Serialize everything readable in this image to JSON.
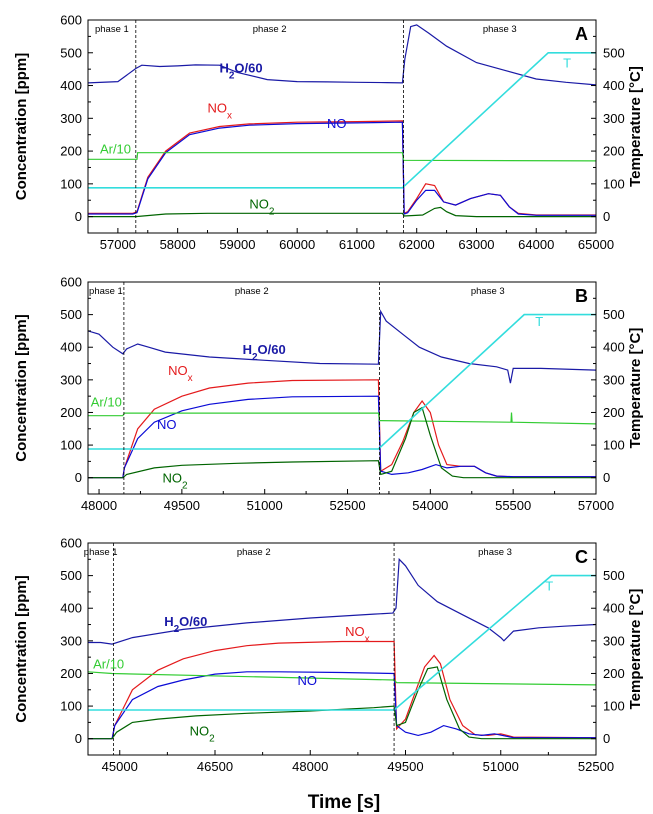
{
  "figure": {
    "xlabel": "Time [s]"
  },
  "chart_data": [
    {
      "type": "line",
      "panel": "A",
      "ylabel": "Concentration [ppm]",
      "ylabel_right": "Temperature [°C]",
      "xlim": [
        56500,
        65000
      ],
      "ylim": [
        -50,
        600
      ],
      "ylim_right": [
        -50,
        600
      ],
      "xticks": [
        57000,
        58000,
        59000,
        60000,
        61000,
        62000,
        63000,
        64000,
        65000
      ],
      "yticks": [
        0,
        100,
        200,
        300,
        400,
        500,
        600
      ],
      "yticks_right": [
        0,
        100,
        200,
        300,
        400,
        500
      ],
      "phases": [
        {
          "label": "phase 1",
          "x_start": 56500,
          "x_end": 57300
        },
        {
          "label": "phase 2",
          "x_start": 57300,
          "x_end": 61780
        },
        {
          "label": "phase 3",
          "x_start": 61780,
          "x_end": 65000
        }
      ],
      "series": [
        {
          "key": "h2o",
          "name": "H2O/60",
          "color": "#1a1aa6",
          "label_pos": [
            58700,
            440
          ],
          "x": [
            56500,
            57000,
            57300,
            57400,
            57700,
            58000,
            58300,
            58700,
            59000,
            59500,
            60000,
            60500,
            61000,
            61500,
            61760,
            61800,
            61900,
            62000,
            62200,
            62500,
            63000,
            63500,
            64000,
            64500,
            65000
          ],
          "y": [
            408,
            412,
            452,
            462,
            458,
            460,
            463,
            462,
            440,
            418,
            412,
            411,
            410,
            409,
            408,
            480,
            580,
            585,
            560,
            520,
            470,
            445,
            420,
            410,
            402
          ]
        },
        {
          "key": "nox",
          "name": "NOx",
          "color": "#e41a1c",
          "label_pos": [
            58500,
            318
          ],
          "x": [
            56500,
            57250,
            57320,
            57500,
            57800,
            58200,
            58700,
            59200,
            60000,
            61000,
            61760,
            61790,
            61850,
            62000,
            62150,
            62300,
            62450,
            62650,
            62900,
            63200,
            63400,
            63550,
            63700,
            64000,
            65000
          ],
          "y": [
            10,
            10,
            15,
            120,
            200,
            255,
            275,
            283,
            288,
            290,
            292,
            10,
            15,
            55,
            100,
            95,
            45,
            35,
            55,
            70,
            65,
            30,
            10,
            5,
            5
          ]
        },
        {
          "key": "no",
          "name": "NO",
          "color": "#0b0bd6",
          "label_pos": [
            60500,
            270
          ],
          "x": [
            56500,
            57250,
            57320,
            57500,
            57800,
            58200,
            58700,
            59200,
            60000,
            61000,
            61760,
            61790,
            61850,
            62000,
            62150,
            62300,
            62450,
            62650,
            62900,
            63200,
            63400,
            63550,
            63700,
            64000,
            65000
          ],
          "y": [
            8,
            8,
            12,
            115,
            195,
            250,
            270,
            279,
            284,
            286,
            288,
            8,
            12,
            50,
            80,
            80,
            45,
            35,
            55,
            70,
            65,
            30,
            8,
            4,
            4
          ]
        },
        {
          "key": "ar",
          "name": "Ar/10",
          "color": "#33cc33",
          "label_pos": [
            56700,
            192
          ],
          "x": [
            56500,
            57320,
            57330,
            61760,
            61780,
            65000
          ],
          "y": [
            175,
            175,
            195,
            195,
            172,
            170
          ]
        },
        {
          "key": "no2",
          "name": "NO2",
          "color": "#006400",
          "label_pos": [
            59200,
            25
          ],
          "x": [
            56500,
            57300,
            57800,
            58500,
            61760,
            61790,
            62100,
            62300,
            62400,
            62500,
            62650,
            63000,
            65000
          ],
          "y": [
            0,
            0,
            8,
            10,
            10,
            2,
            5,
            25,
            28,
            15,
            3,
            0,
            0
          ]
        },
        {
          "key": "temp",
          "name": "T",
          "color": "#33dddd",
          "label_pos": [
            64450,
            455
          ],
          "x": [
            56500,
            61760,
            64200,
            65000
          ],
          "y": [
            88,
            88,
            500,
            500
          ]
        }
      ]
    },
    {
      "type": "line",
      "panel": "B",
      "ylabel": "Concentration [ppm]",
      "ylabel_right": "Temperature [°C]",
      "xlim": [
        47800,
        57000
      ],
      "ylim": [
        -50,
        600
      ],
      "ylim_right": [
        -50,
        600
      ],
      "xticks": [
        48000,
        49500,
        51000,
        52500,
        54000,
        55500,
        57000
      ],
      "yticks": [
        0,
        100,
        200,
        300,
        400,
        500,
        600
      ],
      "yticks_right": [
        0,
        100,
        200,
        300,
        400,
        500
      ],
      "phases": [
        {
          "label": "phase 1",
          "x_start": 47800,
          "x_end": 48450
        },
        {
          "label": "phase 2",
          "x_start": 48450,
          "x_end": 53080
        },
        {
          "label": "phase 3",
          "x_start": 53080,
          "x_end": 57000
        }
      ],
      "series": [
        {
          "key": "h2o",
          "name": "H2O/60",
          "color": "#1a1aa6",
          "label_pos": [
            50600,
            380
          ],
          "x": [
            47800,
            48000,
            48250,
            48430,
            48500,
            48700,
            48900,
            49200,
            50000,
            51000,
            52000,
            53060,
            53100,
            53200,
            53500,
            53800,
            54200,
            54700,
            55200,
            55400,
            55450,
            55500,
            56000,
            57000
          ],
          "y": [
            450,
            440,
            400,
            380,
            395,
            410,
            400,
            385,
            370,
            360,
            350,
            348,
            510,
            480,
            440,
            400,
            370,
            350,
            340,
            330,
            290,
            335,
            335,
            330
          ]
        },
        {
          "key": "nox",
          "name": "NOx",
          "color": "#e41a1c",
          "label_pos": [
            49250,
            315
          ],
          "x": [
            47800,
            48430,
            48460,
            48700,
            49000,
            49500,
            50000,
            50700,
            51500,
            53060,
            53100,
            53300,
            53500,
            53700,
            53850,
            54000,
            54150,
            54300,
            54550,
            54800,
            55000,
            55200,
            55500,
            57000
          ],
          "y": [
            0,
            0,
            30,
            150,
            210,
            250,
            275,
            290,
            298,
            300,
            20,
            40,
            110,
            200,
            235,
            200,
            100,
            40,
            35,
            35,
            15,
            5,
            3,
            3
          ]
        },
        {
          "key": "no",
          "name": "NO",
          "color": "#0b0bd6",
          "label_pos": [
            49050,
            150
          ],
          "x": [
            47800,
            48430,
            48460,
            48700,
            49000,
            49500,
            50000,
            50700,
            51500,
            53060,
            53100,
            53300,
            53600,
            53850,
            54100,
            54300,
            54550,
            54800,
            55000,
            55200,
            55500,
            57000
          ],
          "y": [
            0,
            0,
            30,
            120,
            170,
            205,
            225,
            240,
            248,
            250,
            20,
            10,
            15,
            25,
            40,
            30,
            35,
            35,
            15,
            5,
            3,
            3
          ]
        },
        {
          "key": "ar",
          "name": "Ar/10",
          "color": "#33cc33",
          "label_pos": [
            47850,
            218
          ],
          "x": [
            47800,
            48430,
            48460,
            53060,
            53080,
            55460,
            55470,
            55480,
            57000
          ],
          "y": [
            190,
            190,
            198,
            198,
            175,
            170,
            200,
            170,
            165
          ]
        },
        {
          "key": "no2",
          "name": "NO2",
          "color": "#006400",
          "label_pos": [
            49150,
            -15
          ],
          "x": [
            47800,
            48430,
            48500,
            49000,
            49500,
            50500,
            51500,
            53060,
            53100,
            53300,
            53550,
            53700,
            53850,
            54000,
            54200,
            54400,
            54600,
            57000
          ],
          "y": [
            0,
            0,
            10,
            30,
            38,
            44,
            48,
            52,
            10,
            20,
            120,
            200,
            215,
            130,
            30,
            5,
            0,
            0
          ]
        },
        {
          "key": "temp",
          "name": "T",
          "color": "#33dddd",
          "label_pos": [
            55900,
            465
          ],
          "x": [
            47800,
            53060,
            55700,
            57000
          ],
          "y": [
            88,
            88,
            500,
            500
          ]
        }
      ]
    },
    {
      "type": "line",
      "panel": "C",
      "ylabel": "Concentration [ppm]",
      "ylabel_right": "Temperature [°C]",
      "xlim": [
        44500,
        52500
      ],
      "ylim": [
        -50,
        600
      ],
      "ylim_right": [
        -50,
        600
      ],
      "xticks": [
        45000,
        46500,
        48000,
        49500,
        51000,
        52500
      ],
      "yticks": [
        0,
        100,
        200,
        300,
        400,
        500,
        600
      ],
      "yticks_right": [
        0,
        100,
        200,
        300,
        400,
        500
      ],
      "phases": [
        {
          "label": "phase 1",
          "x_start": 44500,
          "x_end": 44900
        },
        {
          "label": "phase 2",
          "x_start": 44900,
          "x_end": 49320
        },
        {
          "label": "phase 3",
          "x_start": 49320,
          "x_end": 52500
        }
      ],
      "series": [
        {
          "key": "h2o",
          "name": "H2O/60",
          "color": "#1a1aa6",
          "label_pos": [
            45700,
            345
          ],
          "x": [
            44500,
            44700,
            44880,
            45200,
            46000,
            47000,
            48000,
            49000,
            49300,
            49350,
            49400,
            49500,
            49700,
            50000,
            50400,
            50800,
            51000,
            51050,
            51200,
            51600,
            52000,
            52500
          ],
          "y": [
            295,
            295,
            290,
            310,
            335,
            355,
            370,
            382,
            385,
            400,
            550,
            530,
            470,
            420,
            380,
            340,
            310,
            300,
            330,
            340,
            345,
            350
          ]
        },
        {
          "key": "nox",
          "name": "NOx",
          "color": "#e41a1c",
          "label_pos": [
            48550,
            315
          ],
          "x": [
            44500,
            44880,
            44920,
            45200,
            45600,
            46000,
            46500,
            47000,
            47500,
            48500,
            49320,
            49360,
            49500,
            49650,
            49800,
            49950,
            50050,
            50200,
            50400,
            50600,
            50800,
            51000,
            51200,
            52500
          ],
          "y": [
            0,
            0,
            40,
            150,
            210,
            245,
            270,
            285,
            293,
            298,
            298,
            30,
            60,
            140,
            220,
            255,
            230,
            120,
            40,
            12,
            10,
            15,
            5,
            3
          ]
        },
        {
          "key": "no",
          "name": "NO",
          "color": "#0b0bd6",
          "label_pos": [
            47800,
            165
          ],
          "x": [
            44500,
            44880,
            44920,
            45200,
            45600,
            46000,
            46500,
            47000,
            47500,
            48500,
            49320,
            49360,
            49500,
            49700,
            49900,
            50100,
            50300,
            50500,
            50700,
            50900,
            51200,
            52500
          ],
          "y": [
            0,
            0,
            40,
            120,
            160,
            180,
            198,
            205,
            205,
            203,
            200,
            40,
            20,
            10,
            20,
            40,
            30,
            15,
            10,
            15,
            3,
            3
          ]
        },
        {
          "key": "ar",
          "name": "Ar/10",
          "color": "#33cc33",
          "label_pos": [
            44580,
            215
          ],
          "x": [
            44500,
            44880,
            49320,
            49360,
            52500
          ],
          "y": [
            205,
            200,
            180,
            172,
            165
          ]
        },
        {
          "key": "no2",
          "name": "NO2",
          "color": "#006400",
          "label_pos": [
            46100,
            10
          ],
          "x": [
            44500,
            44880,
            44950,
            45200,
            45600,
            46200,
            47000,
            48000,
            49000,
            49320,
            49360,
            49500,
            49700,
            49850,
            50000,
            50150,
            50350,
            50500,
            50700,
            52500
          ],
          "y": [
            0,
            0,
            20,
            50,
            60,
            70,
            78,
            85,
            95,
            100,
            40,
            50,
            150,
            215,
            220,
            120,
            30,
            5,
            0,
            0
          ]
        },
        {
          "key": "temp",
          "name": "T",
          "color": "#33dddd",
          "label_pos": [
            51700,
            455
          ],
          "x": [
            44500,
            49320,
            51800,
            52500
          ],
          "y": [
            88,
            88,
            500,
            500
          ]
        }
      ]
    }
  ]
}
